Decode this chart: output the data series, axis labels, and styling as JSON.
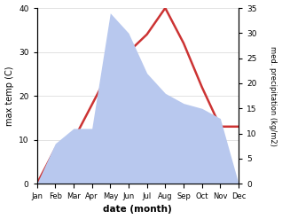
{
  "months": [
    "Jan",
    "Feb",
    "Mar",
    "Apr",
    "May",
    "Jun",
    "Jul",
    "Aug",
    "Sep",
    "Oct",
    "Nov",
    "Dec"
  ],
  "temperature": [
    0,
    8,
    10,
    18,
    26,
    30,
    34,
    40,
    32,
    22,
    13,
    13
  ],
  "precipitation": [
    0,
    8,
    11,
    11,
    34,
    30,
    22,
    18,
    16,
    15,
    13,
    0
  ],
  "temp_color": "#cc3333",
  "precip_fill_color": "#b8c8ee",
  "temp_ylim": [
    0,
    40
  ],
  "precip_ylim": [
    0,
    35
  ],
  "temp_yticks": [
    0,
    10,
    20,
    30,
    40
  ],
  "precip_yticks": [
    0,
    5,
    10,
    15,
    20,
    25,
    30,
    35
  ],
  "xlabel": "date (month)",
  "ylabel_left": "max temp (C)",
  "ylabel_right": "med. precipitation (kg/m2)",
  "bg_color": "#ffffff",
  "grid_color": "#dddddd"
}
